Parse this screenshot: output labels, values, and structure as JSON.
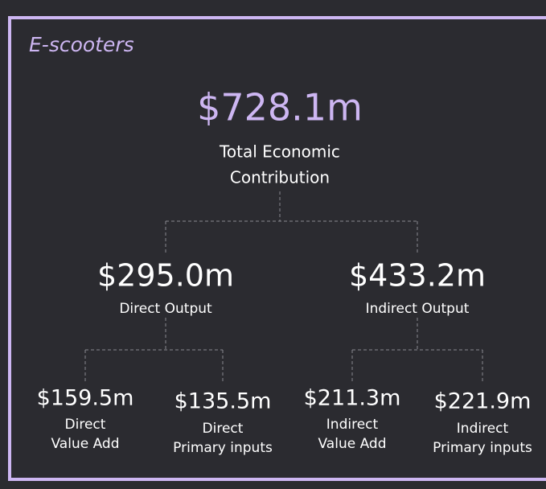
{
  "title": "E-scooters",
  "root": {
    "value": "$728.1m",
    "label": [
      "Total Economic",
      "Contribution"
    ]
  },
  "branches": [
    {
      "value": "$295.0m",
      "label": "Direct Output",
      "leaves": [
        {
          "value": "$159.5m",
          "label": [
            "Direct",
            "Value Add"
          ]
        },
        {
          "value": "$135.5m",
          "label": [
            "Direct",
            "Primary inputs"
          ]
        }
      ]
    },
    {
      "value": "$433.2m",
      "label": "Indirect Output",
      "leaves": [
        {
          "value": "$211.3m",
          "label": [
            "Indirect",
            "Value Add"
          ]
        },
        {
          "value": "$221.9m",
          "label": [
            "Indirect",
            "Primary inputs"
          ]
        }
      ]
    }
  ]
}
